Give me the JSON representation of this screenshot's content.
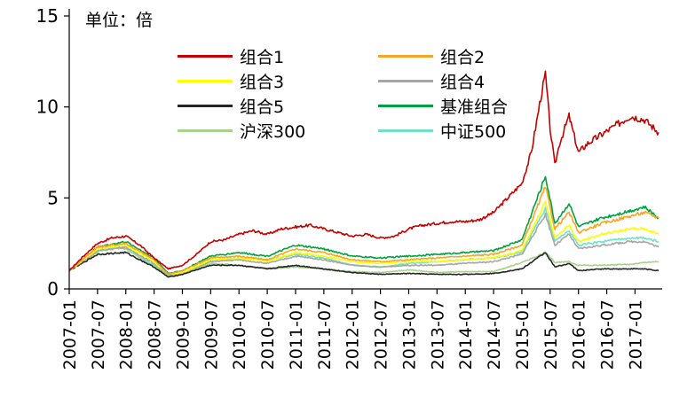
{
  "chart_data": {
    "type": "line",
    "unit_label": "单位：倍",
    "ylim": [
      0,
      15
    ],
    "yticks": [
      0,
      5,
      10,
      15
    ],
    "ytick_labels": [
      "0",
      "5",
      "10",
      "15"
    ],
    "xticks": [
      "2007-01",
      "2007-07",
      "2008-01",
      "2008-07",
      "2009-01",
      "2009-07",
      "2010-01",
      "2010-07",
      "2011-01",
      "2011-07",
      "2012-01",
      "2012-07",
      "2013-01",
      "2013-07",
      "2014-01",
      "2014-07",
      "2015-01",
      "2015-07",
      "2016-01",
      "2016-07",
      "2017-01"
    ],
    "x_range": [
      "2007-01",
      "2017-06"
    ],
    "grid": false,
    "legend_position": "top",
    "series": [
      {
        "name": "组合1",
        "color": "#c00000",
        "points": [
          [
            "2007-01",
            1.0
          ],
          [
            "2007-04",
            1.8
          ],
          [
            "2007-07",
            2.5
          ],
          [
            "2007-10",
            2.8
          ],
          [
            "2008-01",
            2.9
          ],
          [
            "2008-04",
            2.4
          ],
          [
            "2008-07",
            1.7
          ],
          [
            "2008-10",
            1.1
          ],
          [
            "2009-01",
            1.3
          ],
          [
            "2009-04",
            1.9
          ],
          [
            "2009-07",
            2.6
          ],
          [
            "2009-10",
            2.7
          ],
          [
            "2010-01",
            3.0
          ],
          [
            "2010-04",
            3.2
          ],
          [
            "2010-07",
            3.0
          ],
          [
            "2010-10",
            3.3
          ],
          [
            "2011-01",
            3.4
          ],
          [
            "2011-04",
            3.5
          ],
          [
            "2011-07",
            3.3
          ],
          [
            "2011-10",
            3.1
          ],
          [
            "2012-01",
            2.9
          ],
          [
            "2012-04",
            3.0
          ],
          [
            "2012-07",
            2.8
          ],
          [
            "2012-10",
            2.9
          ],
          [
            "2013-01",
            3.3
          ],
          [
            "2013-04",
            3.5
          ],
          [
            "2013-07",
            3.6
          ],
          [
            "2013-10",
            3.7
          ],
          [
            "2014-01",
            3.7
          ],
          [
            "2014-04",
            3.8
          ],
          [
            "2014-07",
            4.2
          ],
          [
            "2014-10",
            5.0
          ],
          [
            "2015-01",
            5.8
          ],
          [
            "2015-03",
            7.5
          ],
          [
            "2015-05",
            10.5
          ],
          [
            "2015-06",
            11.8
          ],
          [
            "2015-07",
            8.8
          ],
          [
            "2015-08",
            6.8
          ],
          [
            "2015-09",
            8.0
          ],
          [
            "2015-11",
            9.5
          ],
          [
            "2016-01",
            7.5
          ],
          [
            "2016-03",
            8.0
          ],
          [
            "2016-06",
            8.5
          ],
          [
            "2016-09",
            9.0
          ],
          [
            "2016-12",
            9.5
          ],
          [
            "2017-03",
            9.3
          ],
          [
            "2017-06",
            8.6
          ]
        ]
      },
      {
        "name": "组合2",
        "color": "#f5a623",
        "points": [
          [
            "2007-01",
            1.0
          ],
          [
            "2007-07",
            2.3
          ],
          [
            "2008-01",
            2.5
          ],
          [
            "2008-07",
            1.6
          ],
          [
            "2008-10",
            0.8
          ],
          [
            "2009-01",
            1.0
          ],
          [
            "2009-07",
            1.7
          ],
          [
            "2010-01",
            1.8
          ],
          [
            "2010-07",
            1.6
          ],
          [
            "2011-01",
            2.2
          ],
          [
            "2011-07",
            2.0
          ],
          [
            "2012-01",
            1.6
          ],
          [
            "2012-07",
            1.5
          ],
          [
            "2013-01",
            1.6
          ],
          [
            "2013-07",
            1.7
          ],
          [
            "2014-01",
            1.8
          ],
          [
            "2014-07",
            1.9
          ],
          [
            "2015-01",
            2.4
          ],
          [
            "2015-06",
            5.6
          ],
          [
            "2015-08",
            3.3
          ],
          [
            "2015-11",
            4.2
          ],
          [
            "2016-01",
            3.1
          ],
          [
            "2016-06",
            3.6
          ],
          [
            "2016-12",
            4.0
          ],
          [
            "2017-03",
            4.2
          ],
          [
            "2017-06",
            3.9
          ]
        ]
      },
      {
        "name": "组合3",
        "color": "#ffff00",
        "points": [
          [
            "2007-01",
            1.0
          ],
          [
            "2007-07",
            2.2
          ],
          [
            "2008-01",
            2.4
          ],
          [
            "2008-07",
            1.5
          ],
          [
            "2008-10",
            0.8
          ],
          [
            "2009-01",
            0.9
          ],
          [
            "2009-07",
            1.6
          ],
          [
            "2010-01",
            1.7
          ],
          [
            "2010-07",
            1.5
          ],
          [
            "2011-01",
            2.0
          ],
          [
            "2011-07",
            1.8
          ],
          [
            "2012-01",
            1.5
          ],
          [
            "2012-07",
            1.4
          ],
          [
            "2013-01",
            1.5
          ],
          [
            "2013-07",
            1.5
          ],
          [
            "2014-01",
            1.6
          ],
          [
            "2014-07",
            1.7
          ],
          [
            "2015-01",
            2.1
          ],
          [
            "2015-06",
            4.8
          ],
          [
            "2015-08",
            2.8
          ],
          [
            "2015-11",
            3.5
          ],
          [
            "2016-01",
            2.6
          ],
          [
            "2016-06",
            3.0
          ],
          [
            "2016-12",
            3.3
          ],
          [
            "2017-03",
            3.3
          ],
          [
            "2017-06",
            3.0
          ]
        ]
      },
      {
        "name": "组合4",
        "color": "#a6a6a6",
        "points": [
          [
            "2007-01",
            1.0
          ],
          [
            "2007-07",
            2.1
          ],
          [
            "2008-01",
            2.3
          ],
          [
            "2008-07",
            1.4
          ],
          [
            "2008-10",
            0.75
          ],
          [
            "2009-01",
            0.9
          ],
          [
            "2009-07",
            1.5
          ],
          [
            "2010-01",
            1.6
          ],
          [
            "2010-07",
            1.4
          ],
          [
            "2011-01",
            1.8
          ],
          [
            "2011-07",
            1.6
          ],
          [
            "2012-01",
            1.3
          ],
          [
            "2012-07",
            1.2
          ],
          [
            "2013-01",
            1.3
          ],
          [
            "2013-07",
            1.3
          ],
          [
            "2014-01",
            1.4
          ],
          [
            "2014-07",
            1.5
          ],
          [
            "2015-01",
            1.9
          ],
          [
            "2015-06",
            4.1
          ],
          [
            "2015-08",
            2.4
          ],
          [
            "2015-11",
            3.0
          ],
          [
            "2016-01",
            2.2
          ],
          [
            "2016-06",
            2.4
          ],
          [
            "2016-12",
            2.6
          ],
          [
            "2017-03",
            2.6
          ],
          [
            "2017-06",
            2.3
          ]
        ]
      },
      {
        "name": "组合5",
        "color": "#262626",
        "points": [
          [
            "2007-01",
            1.0
          ],
          [
            "2007-07",
            1.9
          ],
          [
            "2008-01",
            2.0
          ],
          [
            "2008-07",
            1.2
          ],
          [
            "2008-10",
            0.65
          ],
          [
            "2009-01",
            0.8
          ],
          [
            "2009-07",
            1.3
          ],
          [
            "2010-01",
            1.3
          ],
          [
            "2010-07",
            1.1
          ],
          [
            "2011-01",
            1.3
          ],
          [
            "2011-07",
            1.1
          ],
          [
            "2012-01",
            0.9
          ],
          [
            "2012-07",
            0.8
          ],
          [
            "2013-01",
            0.85
          ],
          [
            "2013-07",
            0.8
          ],
          [
            "2014-01",
            0.8
          ],
          [
            "2014-07",
            0.85
          ],
          [
            "2015-01",
            1.1
          ],
          [
            "2015-06",
            2.0
          ],
          [
            "2015-08",
            1.2
          ],
          [
            "2015-11",
            1.4
          ],
          [
            "2016-01",
            1.0
          ],
          [
            "2016-06",
            1.1
          ],
          [
            "2016-12",
            1.1
          ],
          [
            "2017-03",
            1.1
          ],
          [
            "2017-06",
            1.0
          ]
        ]
      },
      {
        "name": "基准组合",
        "color": "#00a040",
        "points": [
          [
            "2007-01",
            1.0
          ],
          [
            "2007-07",
            2.3
          ],
          [
            "2008-01",
            2.6
          ],
          [
            "2008-07",
            1.7
          ],
          [
            "2008-10",
            0.85
          ],
          [
            "2009-01",
            1.0
          ],
          [
            "2009-07",
            1.8
          ],
          [
            "2010-01",
            2.0
          ],
          [
            "2010-07",
            1.8
          ],
          [
            "2011-01",
            2.4
          ],
          [
            "2011-07",
            2.2
          ],
          [
            "2012-01",
            1.8
          ],
          [
            "2012-07",
            1.7
          ],
          [
            "2013-01",
            1.8
          ],
          [
            "2013-07",
            1.9
          ],
          [
            "2014-01",
            2.0
          ],
          [
            "2014-07",
            2.1
          ],
          [
            "2015-01",
            2.7
          ],
          [
            "2015-06",
            6.2
          ],
          [
            "2015-08",
            3.6
          ],
          [
            "2015-11",
            4.7
          ],
          [
            "2016-01",
            3.4
          ],
          [
            "2016-06",
            3.9
          ],
          [
            "2016-12",
            4.3
          ],
          [
            "2017-03",
            4.5
          ],
          [
            "2017-06",
            3.9
          ]
        ]
      },
      {
        "name": "沪深300",
        "color": "#a9d18e",
        "points": [
          [
            "2007-01",
            1.0
          ],
          [
            "2007-07",
            2.0
          ],
          [
            "2007-10",
            2.5
          ],
          [
            "2008-01",
            2.2
          ],
          [
            "2008-07",
            1.2
          ],
          [
            "2008-10",
            0.7
          ],
          [
            "2009-01",
            0.85
          ],
          [
            "2009-07",
            1.4
          ],
          [
            "2010-01",
            1.3
          ],
          [
            "2010-07",
            1.1
          ],
          [
            "2011-01",
            1.2
          ],
          [
            "2011-07",
            1.1
          ],
          [
            "2012-01",
            0.95
          ],
          [
            "2012-07",
            0.9
          ],
          [
            "2013-01",
            1.05
          ],
          [
            "2013-07",
            0.9
          ],
          [
            "2014-01",
            0.95
          ],
          [
            "2014-07",
            0.95
          ],
          [
            "2015-01",
            1.45
          ],
          [
            "2015-06",
            2.0
          ],
          [
            "2015-08",
            1.45
          ],
          [
            "2015-11",
            1.5
          ],
          [
            "2016-01",
            1.3
          ],
          [
            "2016-06",
            1.3
          ],
          [
            "2016-12",
            1.35
          ],
          [
            "2017-03",
            1.45
          ],
          [
            "2017-06",
            1.5
          ]
        ]
      },
      {
        "name": "中证500",
        "color": "#70e0c8",
        "points": [
          [
            "2007-01",
            1.0
          ],
          [
            "2007-07",
            2.1
          ],
          [
            "2008-01",
            2.3
          ],
          [
            "2008-07",
            1.3
          ],
          [
            "2008-10",
            0.7
          ],
          [
            "2009-01",
            0.9
          ],
          [
            "2009-07",
            1.5
          ],
          [
            "2010-01",
            1.7
          ],
          [
            "2010-07",
            1.6
          ],
          [
            "2011-01",
            1.9
          ],
          [
            "2011-07",
            1.7
          ],
          [
            "2012-01",
            1.3
          ],
          [
            "2012-07",
            1.2
          ],
          [
            "2013-01",
            1.4
          ],
          [
            "2013-07",
            1.5
          ],
          [
            "2014-01",
            1.6
          ],
          [
            "2014-07",
            1.7
          ],
          [
            "2015-01",
            2.0
          ],
          [
            "2015-06",
            4.4
          ],
          [
            "2015-08",
            2.6
          ],
          [
            "2015-11",
            3.2
          ],
          [
            "2016-01",
            2.4
          ],
          [
            "2016-06",
            2.6
          ],
          [
            "2016-12",
            2.8
          ],
          [
            "2017-03",
            2.8
          ],
          [
            "2017-06",
            2.6
          ]
        ]
      }
    ]
  }
}
